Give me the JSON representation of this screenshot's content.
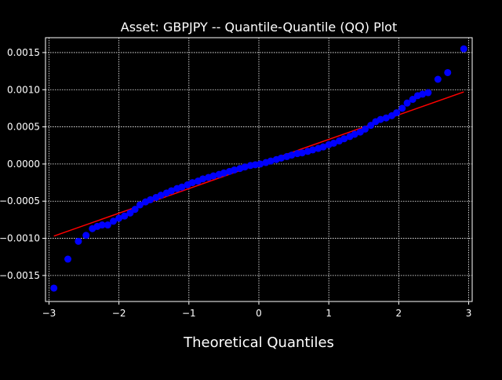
{
  "chart_data": {
    "type": "scatter",
    "title": "Asset: GBPJPY -- Quantile-Quantile (QQ) Plot",
    "xlabel": "Theoretical Quantiles",
    "ylabel": "",
    "xlim": [
      -3.05,
      3.05
    ],
    "ylim": [
      -0.00185,
      0.0017
    ],
    "x_ticks": [
      -3,
      -2,
      -1,
      0,
      1,
      2,
      3
    ],
    "x_tick_labels": [
      "−3",
      "−2",
      "−1",
      "0",
      "1",
      "2",
      "3"
    ],
    "y_ticks": [
      -0.0015,
      -0.001,
      -0.0005,
      0.0,
      0.0005,
      0.001,
      0.0015
    ],
    "y_tick_labels": [
      "−0.0015",
      "−0.0010",
      "−0.0005",
      "0.0000",
      "0.0005",
      "0.0010",
      "0.0015"
    ],
    "grid": true,
    "colors": {
      "background": "#000000",
      "points": "#0000ff",
      "reference_line": "#ff0000",
      "grid": "#ffffff",
      "text": "#ffffff"
    },
    "reference_line": {
      "x": [
        -2.93,
        2.93
      ],
      "y": [
        -0.00097,
        0.00097
      ]
    },
    "series": [
      {
        "points": [
          [
            -2.93,
            -0.00167
          ],
          [
            -2.73,
            -0.00128
          ],
          [
            -2.58,
            -0.00104
          ],
          [
            -2.47,
            -0.00096
          ],
          [
            -2.38,
            -0.00087
          ],
          [
            -2.31,
            -0.00084
          ],
          [
            -2.24,
            -0.00082
          ],
          [
            -2.16,
            -0.00082
          ],
          [
            -2.08,
            -0.00077
          ],
          [
            -2.0,
            -0.00073
          ],
          [
            -1.92,
            -0.0007
          ],
          [
            -1.84,
            -0.00066
          ],
          [
            -1.77,
            -0.00061
          ],
          [
            -1.7,
            -0.00055
          ],
          [
            -1.62,
            -0.00051
          ],
          [
            -1.55,
            -0.00048
          ],
          [
            -1.47,
            -0.00045
          ],
          [
            -1.4,
            -0.00042
          ],
          [
            -1.32,
            -0.00039
          ],
          [
            -1.25,
            -0.00036
          ],
          [
            -1.17,
            -0.00033
          ],
          [
            -1.1,
            -0.00031
          ],
          [
            -1.02,
            -0.00028
          ],
          [
            -0.95,
            -0.00025
          ],
          [
            -0.87,
            -0.00023
          ],
          [
            -0.8,
            -0.0002
          ],
          [
            -0.72,
            -0.00018
          ],
          [
            -0.65,
            -0.00016
          ],
          [
            -0.57,
            -0.00014
          ],
          [
            -0.5,
            -0.00012
          ],
          [
            -0.42,
            -0.0001
          ],
          [
            -0.35,
            -8e-05
          ],
          [
            -0.27,
            -6e-05
          ],
          [
            -0.2,
            -4e-05
          ],
          [
            -0.12,
            -2e-05
          ],
          [
            -0.05,
            -1e-05
          ],
          [
            0.02,
            0.0
          ],
          [
            0.1,
            2e-05
          ],
          [
            0.17,
            4e-05
          ],
          [
            0.25,
            6e-05
          ],
          [
            0.32,
            8e-05
          ],
          [
            0.4,
            0.0001
          ],
          [
            0.47,
            0.00012
          ],
          [
            0.55,
            0.00014
          ],
          [
            0.62,
            0.00015
          ],
          [
            0.7,
            0.00017
          ],
          [
            0.77,
            0.00019
          ],
          [
            0.85,
            0.00021
          ],
          [
            0.92,
            0.00023
          ],
          [
            1.0,
            0.00026
          ],
          [
            1.07,
            0.00028
          ],
          [
            1.15,
            0.00031
          ],
          [
            1.22,
            0.00034
          ],
          [
            1.3,
            0.00037
          ],
          [
            1.37,
            0.0004
          ],
          [
            1.45,
            0.00043
          ],
          [
            1.52,
            0.00047
          ],
          [
            1.6,
            0.00052
          ],
          [
            1.67,
            0.00057
          ],
          [
            1.74,
            0.0006
          ],
          [
            1.82,
            0.00062
          ],
          [
            1.9,
            0.00065
          ],
          [
            1.97,
            0.00069
          ],
          [
            2.05,
            0.00075
          ],
          [
            2.12,
            0.00082
          ],
          [
            2.2,
            0.00087
          ],
          [
            2.27,
            0.00092
          ],
          [
            2.34,
            0.00094
          ],
          [
            2.42,
            0.00096
          ],
          [
            2.56,
            0.00114
          ],
          [
            2.7,
            0.00123
          ],
          [
            2.93,
            0.00155
          ]
        ]
      }
    ]
  }
}
